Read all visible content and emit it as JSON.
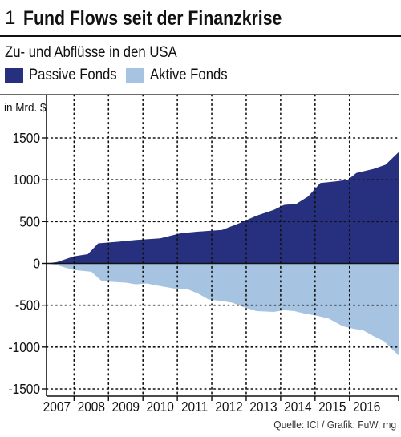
{
  "header": {
    "figure_number": "1",
    "title": "Fund Flows seit der Finanzkrise",
    "subtitle": "Zu- und Abflüsse in den USA"
  },
  "legend": [
    {
      "label": "Passive Fonds",
      "color": "#27307f"
    },
    {
      "label": "Aktive Fonds",
      "color": "#a6c4e1"
    }
  ],
  "unit_label": "in Mrd. $",
  "source": "Quelle: ICI / Grafik: FuW, mg",
  "chart_data": {
    "type": "area",
    "ylabel": "in Mrd. $",
    "ylim": [
      -1500,
      1500
    ],
    "xlim": [
      2006.7,
      2016.95
    ],
    "y_ticks": [
      1500,
      1000,
      500,
      0,
      -500,
      -1000,
      -1500
    ],
    "y_tick_labels": [
      "1500",
      "1000",
      "500",
      "0",
      "-500",
      "-1000",
      "-1500"
    ],
    "x_ticks": [
      2007,
      2008,
      2009,
      2010,
      2011,
      2012,
      2013,
      2014,
      2015,
      2016
    ],
    "x_tick_labels": [
      "2007",
      "2008",
      "2009",
      "2010",
      "2011",
      "2012",
      "2013",
      "2014",
      "2015",
      "2016"
    ],
    "grid": true,
    "legend_position": "top-left",
    "series": [
      {
        "name": "Passive Fonds",
        "color": "#27307f",
        "x": [
          2006.7,
          2007.0,
          2007.5,
          2007.9,
          2008.2,
          2008.8,
          2009.3,
          2010.0,
          2010.6,
          2011.1,
          2011.8,
          2012.3,
          2012.8,
          2013.3,
          2013.6,
          2013.95,
          2014.3,
          2014.65,
          2015.1,
          2015.45,
          2015.7,
          2016.2,
          2016.55,
          2016.95
        ],
        "values": [
          0,
          15,
          85,
          110,
          240,
          260,
          280,
          300,
          360,
          380,
          400,
          480,
          570,
          640,
          700,
          710,
          800,
          960,
          980,
          1000,
          1080,
          1130,
          1180,
          1340
        ]
      },
      {
        "name": "Aktive Fonds",
        "color": "#a6c4e1",
        "x": [
          2006.7,
          2007.0,
          2007.5,
          2008.0,
          2008.3,
          2008.6,
          2009.0,
          2009.3,
          2009.6,
          2010.0,
          2010.4,
          2010.8,
          2011.1,
          2011.4,
          2011.8,
          2012.1,
          2012.4,
          2012.8,
          2013.3,
          2013.6,
          2013.9,
          2014.2,
          2014.6,
          2014.9,
          2015.3,
          2015.6,
          2015.9,
          2016.2,
          2016.5,
          2016.95
        ],
        "values": [
          0,
          -20,
          -80,
          -100,
          -210,
          -220,
          -230,
          -250,
          -240,
          -270,
          -300,
          -310,
          -360,
          -430,
          -450,
          -470,
          -520,
          -570,
          -580,
          -560,
          -570,
          -600,
          -630,
          -660,
          -750,
          -780,
          -800,
          -870,
          -930,
          -1110
        ]
      }
    ]
  }
}
